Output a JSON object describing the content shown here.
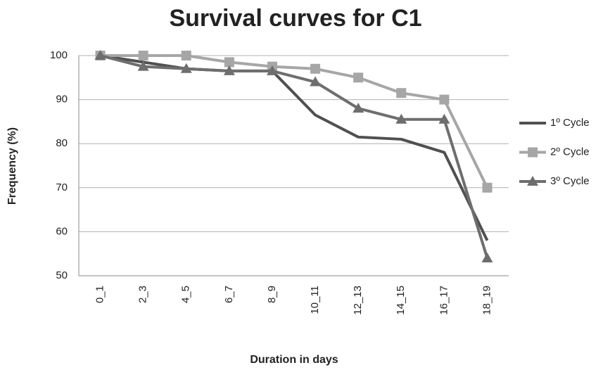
{
  "chart_data": {
    "type": "line",
    "title": "Survival curves for C1",
    "x_label": "Duration in days",
    "y_label": "Frequency (%)",
    "categories": [
      "0_1",
      "2_3",
      "4_5",
      "6_7",
      "8_9",
      "10_11",
      "12_13",
      "14_15",
      "16_17",
      "18_19"
    ],
    "series": [
      {
        "name": "1º Cycle",
        "color": "#505050",
        "marker": "none",
        "values": [
          100,
          98.5,
          97,
          96.5,
          96.5,
          86.5,
          81.5,
          81,
          78,
          58
        ]
      },
      {
        "name": "2º Cycle",
        "color": "#a6a6a6",
        "marker": "square",
        "values": [
          100,
          100,
          100,
          98.5,
          97.5,
          97,
          95,
          91.5,
          90,
          70
        ]
      },
      {
        "name": "3º Cycle",
        "color": "#6e6e6e",
        "marker": "triangle",
        "values": [
          100,
          97.5,
          97,
          96.5,
          96.5,
          94,
          88,
          85.5,
          85.5,
          54
        ]
      }
    ],
    "ylim": [
      50,
      100
    ],
    "yticks": [
      50,
      60,
      70,
      80,
      90,
      100
    ],
    "grid": true,
    "legend": "right"
  }
}
